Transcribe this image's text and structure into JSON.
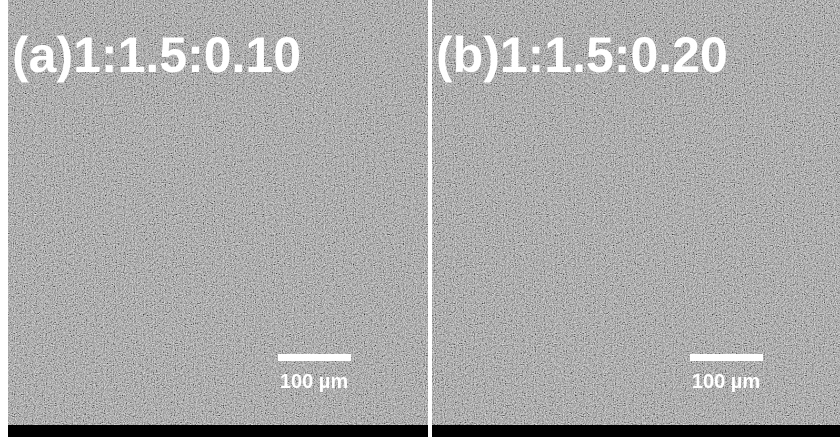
{
  "panels": [
    {
      "label": "(a)1:1.5:0.10",
      "scale_bar": "100 µm"
    },
    {
      "label": "(b)1:1.5:0.20",
      "scale_bar": "100 µm"
    }
  ]
}
